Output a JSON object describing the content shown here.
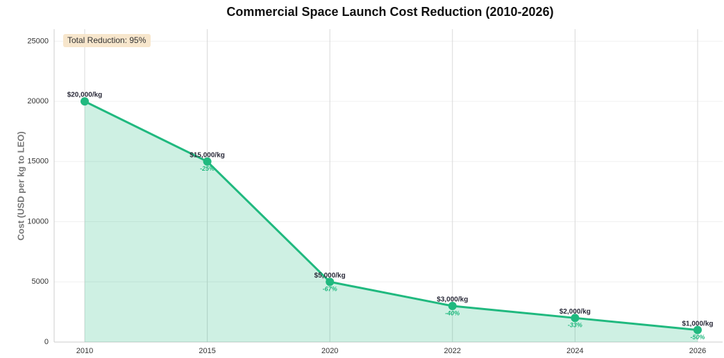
{
  "chart_data": {
    "type": "line",
    "title": "Commercial Space Launch Cost Reduction (2010-2026)",
    "y_label": "Cost (USD per kg to LEO)",
    "annotation": "Total Reduction: 95%",
    "categories": [
      "2010",
      "2015",
      "2020",
      "2022",
      "2024",
      "2026"
    ],
    "values": [
      20000,
      15000,
      5000,
      3000,
      2000,
      1000
    ],
    "value_labels": [
      "$20,000/kg",
      "$15,000/kg",
      "$5,000/kg",
      "$3,000/kg",
      "$2,000/kg",
      "$1,000/kg"
    ],
    "change_labels": [
      null,
      "-25%",
      "-67%",
      "-40%",
      "-33%",
      "-50%"
    ],
    "color": "#20b97f",
    "ylim": [
      0,
      26000
    ],
    "yticks": [
      0,
      5000,
      10000,
      15000,
      20000,
      25000
    ],
    "grid": true
  }
}
